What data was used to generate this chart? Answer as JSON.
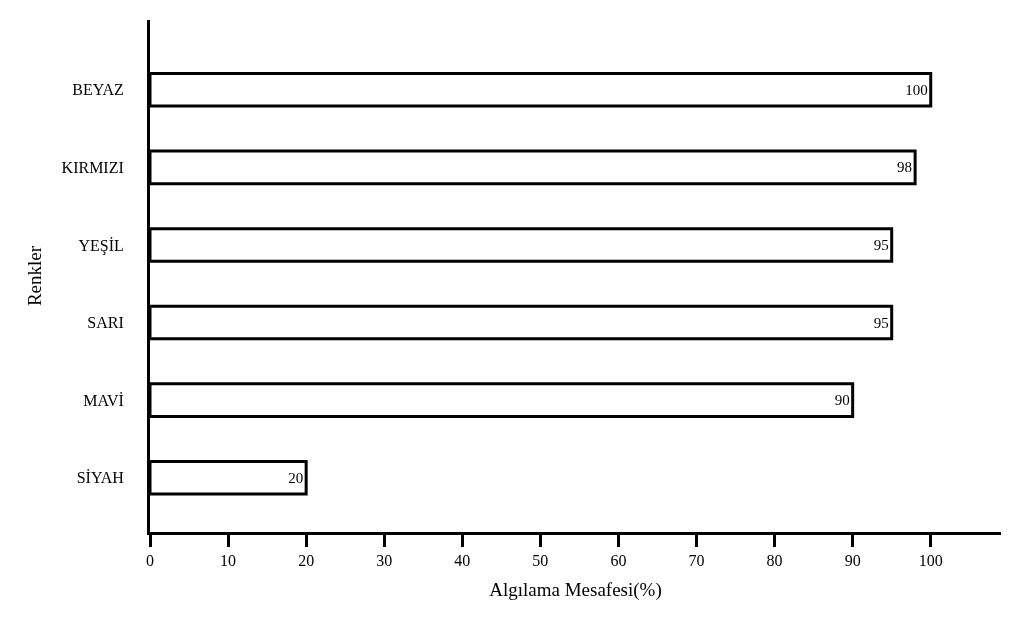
{
  "chart_data": {
    "type": "bar",
    "orientation": "horizontal",
    "xlabel": "Algılama Mesafesi(%)",
    "ylabel": "Renkler",
    "categories": [
      "BEYAZ",
      "KIRMIZI",
      "YEŞİL",
      "SARI",
      "MAVİ",
      "SİYAH"
    ],
    "values": [
      100,
      98,
      95,
      95,
      90,
      20
    ],
    "color": "#ffffff",
    "xlim": [
      0,
      109
    ],
    "xticks": [
      0,
      10,
      20,
      30,
      40,
      50,
      60,
      70,
      80,
      90,
      100
    ],
    "data_labels": true
  }
}
